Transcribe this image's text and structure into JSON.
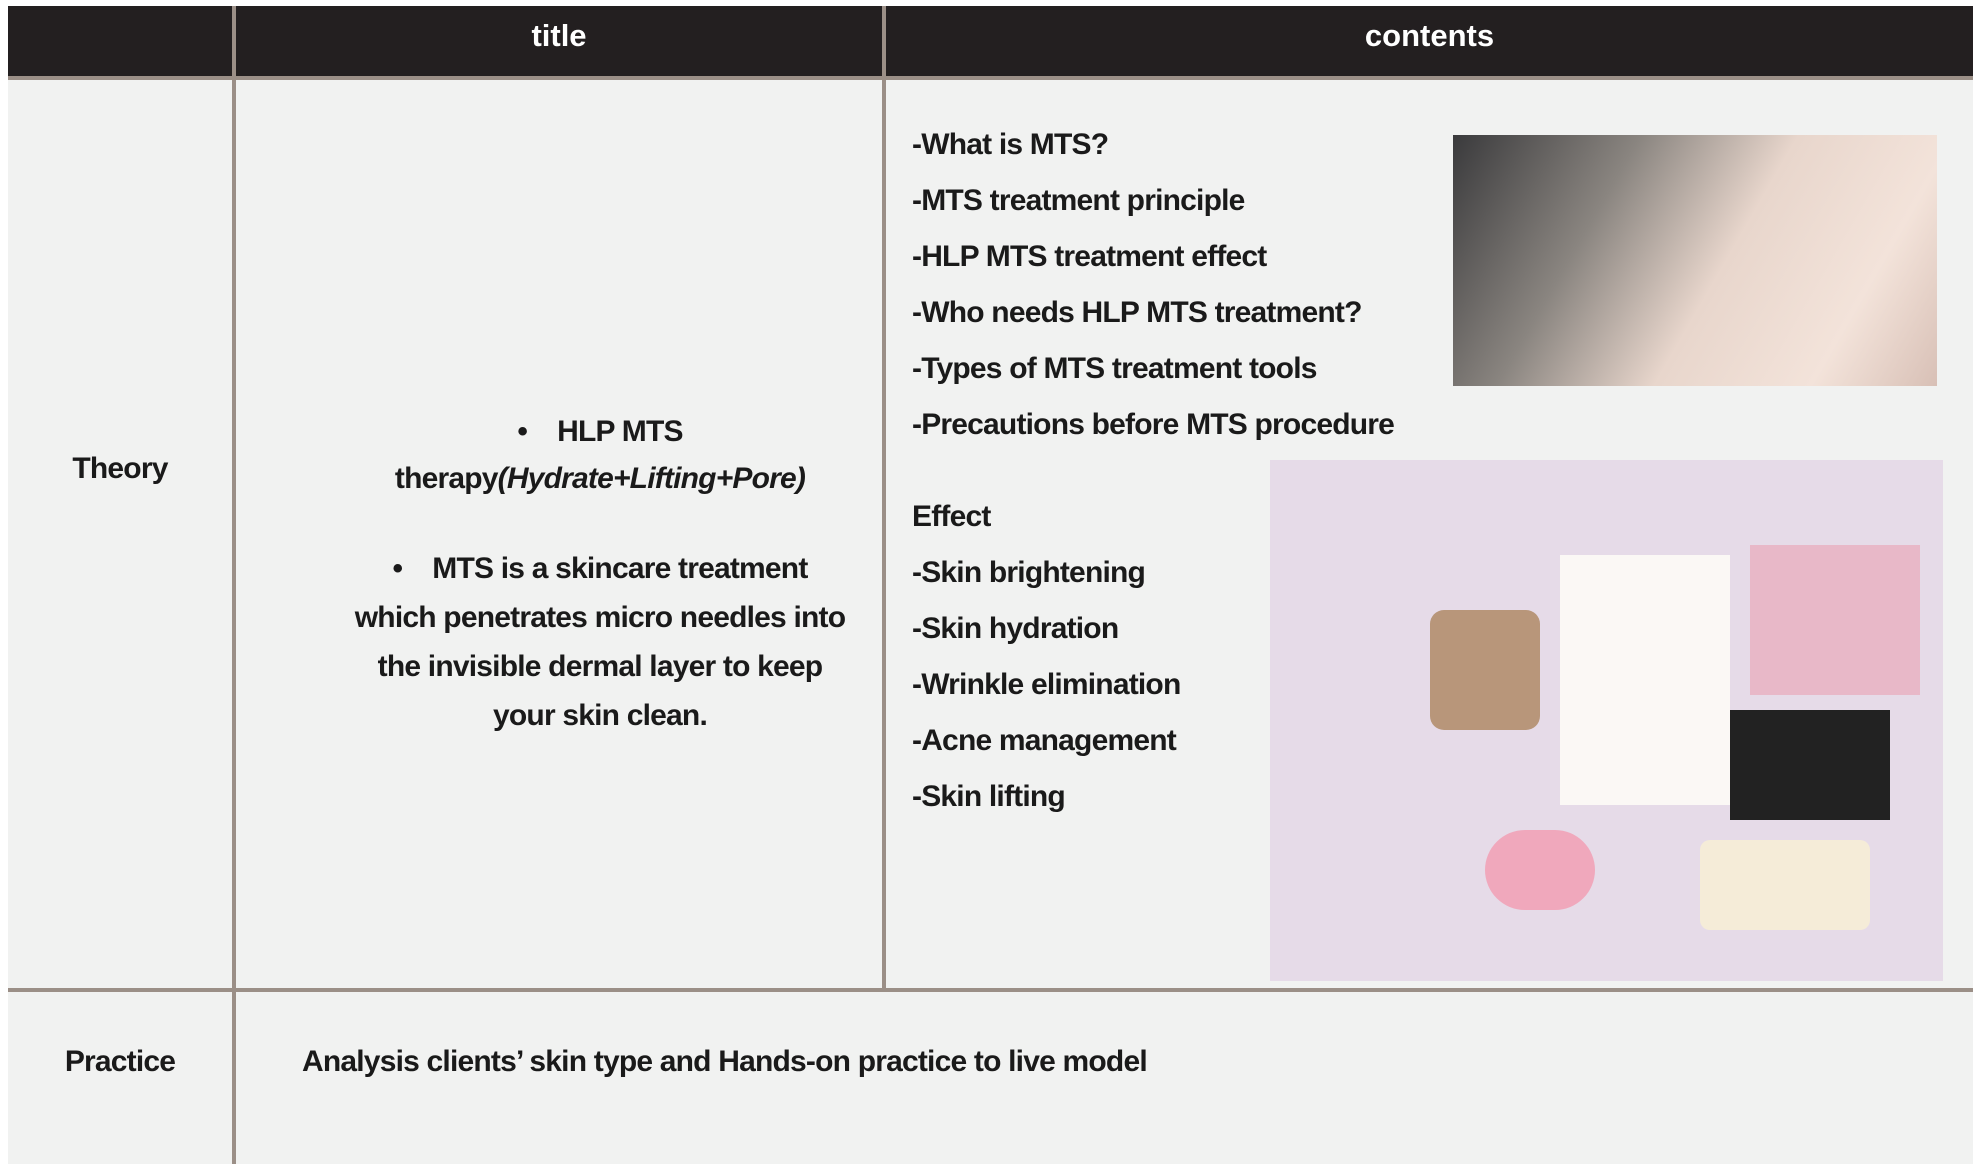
{
  "table": {
    "header": [
      "",
      "title",
      "contents"
    ],
    "rows": [
      {
        "label": "Theory",
        "title_bullets": [
          {
            "text": "HLP MTS therapy",
            "italic": "(Hydrate+Lifting+Pore)"
          },
          {
            "text": "MTS is a skincare treatment which penetrates micro needles into the invisible dermal layer to keep your skin clean."
          }
        ],
        "contents": [
          "-What is MTS?",
          "-MTS treatment principle",
          "-HLP MTS treatment effect",
          "-Who needs HLP MTS treatment?",
          "-Types of MTS treatment tools",
          "-Precautions before MTS procedure"
        ],
        "effect_heading": "Effect",
        "effects": [
          "-Skin brightening",
          "-Skin hydration",
          "-Wrinkle elimination",
          "-Acne management",
          "-Skin lifting"
        ]
      },
      {
        "label": "Practice",
        "text": "Analysis clients’ skin type and Hands-on practice to live model"
      }
    ]
  }
}
